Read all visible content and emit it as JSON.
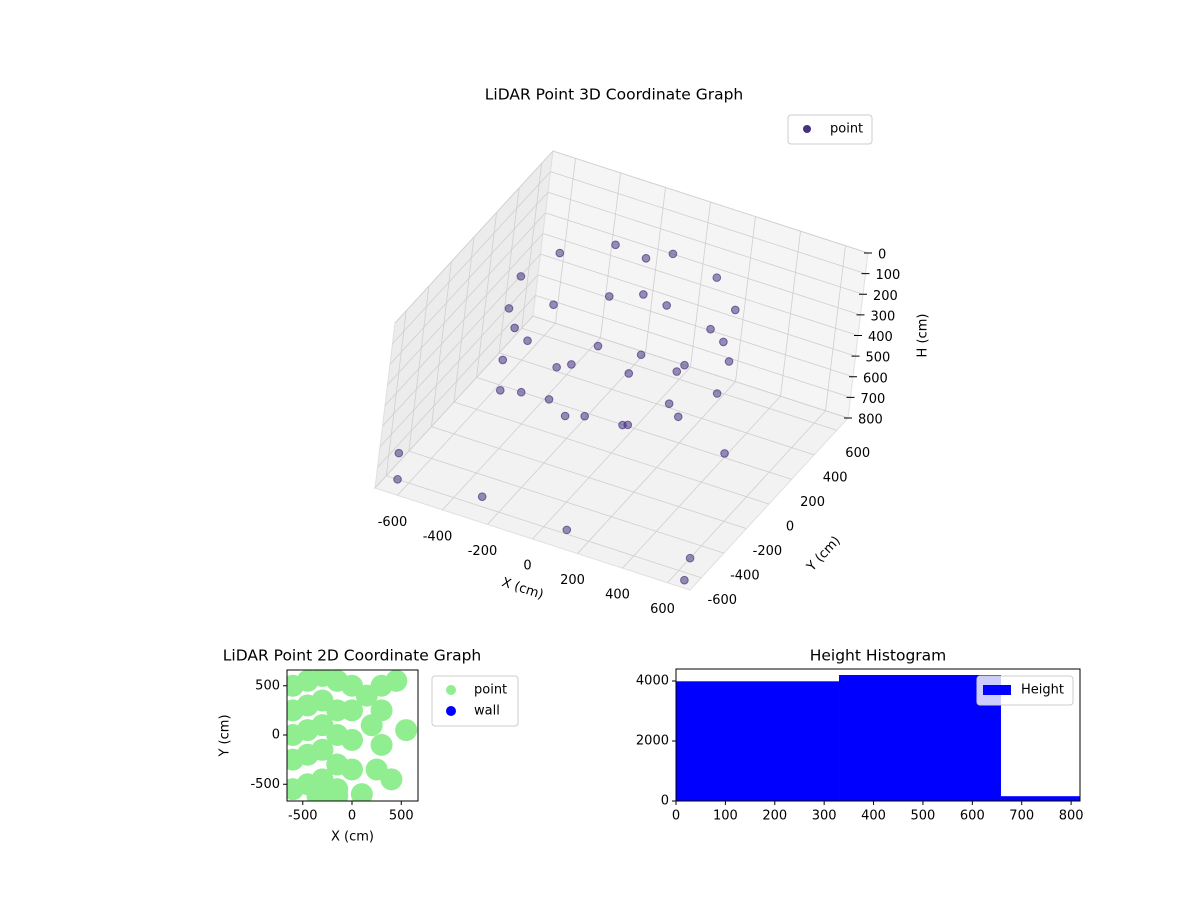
{
  "chart_data": [
    {
      "type": "scatter3d",
      "title": "LiDAR Point 3D Coordinate Graph",
      "xlabel": "X (cm)",
      "ylabel": "Y (cm)",
      "zlabel": "H (cm)",
      "xlim": [
        -700,
        700
      ],
      "ylim": [
        -700,
        700
      ],
      "zlim": [
        800,
        0
      ],
      "xticks": [
        -600,
        -400,
        -200,
        0,
        200,
        400,
        600
      ],
      "yticks": [
        -600,
        -400,
        -200,
        0,
        200,
        400,
        600
      ],
      "zticks": [
        0,
        100,
        200,
        300,
        400,
        500,
        600,
        700,
        800
      ],
      "grid": true,
      "legend": "upper right",
      "series": [
        {
          "name": "point",
          "color": "#46337e",
          "x": [
            400,
            340,
            175,
            -50,
            -275,
            -440,
            -500,
            -440,
            -275,
            -50,
            175,
            340,
            400,
            340,
            175,
            -50,
            -275,
            -440,
            -500,
            -440,
            -275,
            -50,
            175,
            340,
            200,
            125,
            -50,
            -225,
            -300,
            -225,
            -50,
            125,
            -100,
            -80,
            -650,
            -700,
            600,
            400,
            -300,
            650,
            100,
            -550
          ],
          "y": [
            50,
            275,
            440,
            500,
            440,
            275,
            50,
            -175,
            -340,
            -400,
            -340,
            -175,
            50,
            275,
            440,
            500,
            440,
            275,
            50,
            -175,
            -340,
            -400,
            -340,
            -175,
            50,
            267,
            300,
            267,
            50,
            -167,
            -200,
            -167,
            350,
            320,
            -600,
            -500,
            -500,
            200,
            -550,
            -650,
            -600,
            100
          ],
          "h": [
            150,
            150,
            150,
            150,
            150,
            150,
            150,
            150,
            150,
            150,
            150,
            150,
            400,
            400,
            400,
            400,
            400,
            400,
            400,
            400,
            400,
            400,
            400,
            400,
            520,
            520,
            520,
            520,
            520,
            520,
            520,
            520,
            100,
            250,
            800,
            750,
            800,
            780,
            790,
            800,
            780,
            750
          ]
        }
      ]
    },
    {
      "type": "scatter",
      "title": "LiDAR Point 2D Coordinate Graph",
      "xlabel": "X (cm)",
      "ylabel": "Y (cm)",
      "xlim": [
        -660,
        670
      ],
      "ylim": [
        -670,
        660
      ],
      "xticks": [
        -500,
        0,
        500
      ],
      "yticks": [
        -500,
        0,
        500
      ],
      "legend": "outside right",
      "series": [
        {
          "name": "point",
          "color": "#90ee90",
          "x": [
            -600,
            -600,
            -600,
            -600,
            -600,
            -450,
            -450,
            -450,
            -450,
            -450,
            -300,
            -300,
            -300,
            -300,
            -300,
            -150,
            -150,
            -150,
            -150,
            -150,
            0,
            0,
            0,
            0,
            100,
            150,
            200,
            300,
            300,
            450,
            550,
            -350,
            -150,
            250,
            400,
            300
          ],
          "y": [
            500,
            250,
            0,
            -250,
            -550,
            550,
            300,
            50,
            -200,
            -500,
            600,
            350,
            100,
            -150,
            -450,
            550,
            250,
            0,
            -300,
            -550,
            500,
            250,
            -50,
            -350,
            -600,
            400,
            100,
            500,
            250,
            550,
            50,
            -620,
            -620,
            -350,
            -450,
            -100
          ]
        },
        {
          "name": "wall",
          "color": "#0000ff",
          "x": [],
          "y": []
        }
      ]
    },
    {
      "type": "histogram",
      "title": "Height Histogram",
      "xlim": [
        0,
        818
      ],
      "ylim": [
        0,
        4400
      ],
      "xticks": [
        0,
        100,
        200,
        300,
        400,
        500,
        600,
        700,
        800
      ],
      "yticks": [
        0,
        2000,
        4000
      ],
      "legend": "upper right",
      "series": [
        {
          "name": "Height",
          "color": "#0000ff",
          "bins": [
            0,
            330,
            658,
            818
          ],
          "values": [
            3990,
            4200,
            160
          ]
        }
      ]
    }
  ]
}
